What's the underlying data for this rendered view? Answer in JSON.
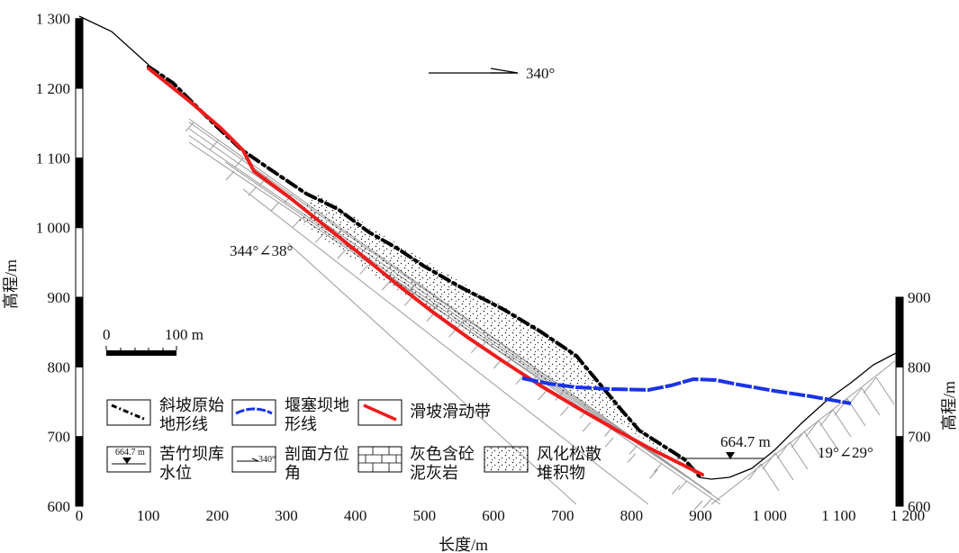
{
  "axes": {
    "x_label": "长度/m",
    "y_left_label": "高程/m",
    "y_right_label": "高程/m",
    "x_ticks": [
      "0",
      "100",
      "200",
      "300",
      "400",
      "500",
      "600",
      "700",
      "800",
      "900",
      "1 000",
      "1 100",
      "1 200"
    ],
    "y_left_ticks": [
      "600",
      "700",
      "800",
      "900",
      "1 000",
      "1 100",
      "1 200",
      "1 300"
    ],
    "y_right_ticks": [
      "600",
      "700",
      "800",
      "900"
    ]
  },
  "annotations": {
    "azimuth": "340°",
    "bedding_left": "344°∠38°",
    "bedding_right": "19°∠29°",
    "reservoir_level": "664.7 m"
  },
  "scale_bar": {
    "start": "0",
    "end": "100 m"
  },
  "legend": [
    {
      "key": "slope-original-terrain",
      "line1": "斜坡原始",
      "line2": "地形线",
      "color": "#000000"
    },
    {
      "key": "dam-terrain",
      "line1": "堰塞坝地",
      "line2": "形线",
      "color": "#1a33e6"
    },
    {
      "key": "sliding-zone",
      "line1": "滑坡滑动带",
      "line2": "",
      "color": "#ee1c1c"
    },
    {
      "key": "reservoir-level",
      "line1": "苦竹坝库",
      "line2": "水位",
      "swatch_text": "664.7 m"
    },
    {
      "key": "section-azimuth",
      "line1": "剖面方位",
      "line2": "角",
      "swatch_text": "340°"
    },
    {
      "key": "limestone",
      "line1": "灰色含砼",
      "line2": "泥灰岩"
    },
    {
      "key": "deposit",
      "line1": "风化松散",
      "line2": "堆积物"
    }
  ],
  "colors": {
    "terrain": "#000000",
    "dam": "#1a33e6",
    "sliding_zone": "#ee1c1c",
    "rock_hatch": "#9a9a9a"
  }
}
